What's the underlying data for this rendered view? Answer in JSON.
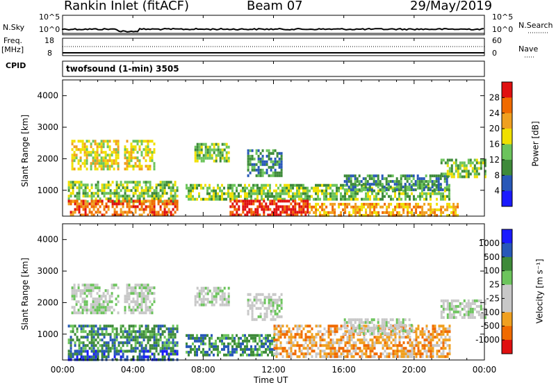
{
  "header": {
    "station": "Rankin Inlet (fitACF)",
    "beam": "Beam 07",
    "date": "29/May/2019"
  },
  "panels": {
    "nsky": {
      "left_label": "N.Sky",
      "left_ticks": [
        "10^5",
        "10^0"
      ],
      "right_label": "N.Search",
      "right_ticks": [
        "10^5",
        "10^0"
      ]
    },
    "freq": {
      "left_label_1": "Freq.",
      "left_label_2": "[MHz]",
      "left_ticks": [
        "18",
        "8"
      ],
      "right_label": "Nave",
      "right_ticks": [
        "60",
        "0"
      ]
    },
    "cpid": {
      "left_label": "CPID",
      "text": "twofsound (1-min) 3505"
    }
  },
  "colors": {
    "power": [
      "#1a1aff",
      "#2858b8",
      "#3e8a3a",
      "#6cc45c",
      "#f0e000",
      "#f0a020",
      "#f06a00",
      "#e01010"
    ],
    "velocity": [
      "#e01010",
      "#f06a00",
      "#f0a020",
      "#c8c8c8",
      "#c8c8c8",
      "#6cc45c",
      "#3e8a3a",
      "#2858b8",
      "#1a1aff"
    ]
  },
  "chart_data": [
    {
      "type": "heatmap",
      "name": "power",
      "ylabel": "Slant Range [km]",
      "ylim": [
        180,
        4500
      ],
      "yticks": [
        "1000",
        "2000",
        "3000",
        "4000"
      ],
      "xlim_hours": [
        0,
        24
      ],
      "colorbar_label": "Power [dB]",
      "colorbar_ticks": [
        "4",
        "8",
        "12",
        "16",
        "20",
        "24",
        "28"
      ],
      "regions": [
        {
          "t0": 0.5,
          "t1": 3.2,
          "r0": 1700,
          "r1": 2600,
          "level": 4
        },
        {
          "t0": 3.5,
          "t1": 5.2,
          "r0": 1700,
          "r1": 2600,
          "level": 4
        },
        {
          "t0": 7.5,
          "t1": 9.5,
          "r0": 1900,
          "r1": 2500,
          "level": 3
        },
        {
          "t0": 10.5,
          "t1": 12.5,
          "r0": 1500,
          "r1": 2300,
          "level": 2
        },
        {
          "t0": 0.3,
          "t1": 6.5,
          "r0": 600,
          "r1": 1300,
          "level": 3
        },
        {
          "t0": 7.0,
          "t1": 22.0,
          "r0": 700,
          "r1": 1200,
          "level": 3
        },
        {
          "t0": 16.0,
          "t1": 22.0,
          "r0": 1000,
          "r1": 1500,
          "level": 2
        },
        {
          "t0": 21.5,
          "t1": 24.0,
          "r0": 1400,
          "r1": 2000,
          "level": 3
        },
        {
          "t0": 0.3,
          "t1": 6.5,
          "r0": 200,
          "r1": 700,
          "level": 6
        },
        {
          "t0": 9.5,
          "t1": 14.0,
          "r0": 200,
          "r1": 700,
          "level": 7
        },
        {
          "t0": 14.0,
          "t1": 22.5,
          "r0": 200,
          "r1": 600,
          "level": 5
        }
      ]
    },
    {
      "type": "heatmap",
      "name": "velocity",
      "ylabel": "Slant Range [km]",
      "ylim": [
        180,
        4500
      ],
      "yticks": [
        "1000",
        "2000",
        "3000",
        "4000"
      ],
      "xlim_hours": [
        0,
        24
      ],
      "xticks": [
        "00:00",
        "04:00",
        "08:00",
        "12:00",
        "16:00",
        "20:00",
        "00:00"
      ],
      "xlabel": "Time UT",
      "colorbar_label": "Velocity [m s⁻¹]",
      "colorbar_ticks": [
        "1000",
        "500",
        "100",
        "25",
        "-25",
        "-100",
        "-500",
        "-1000"
      ],
      "regions": [
        {
          "t0": 0.5,
          "t1": 3.2,
          "r0": 1700,
          "r1": 2600,
          "level": 4
        },
        {
          "t0": 3.5,
          "t1": 5.2,
          "r0": 1700,
          "r1": 2600,
          "level": 4
        },
        {
          "t0": 7.5,
          "t1": 9.5,
          "r0": 1900,
          "r1": 2500,
          "level": 4
        },
        {
          "t0": 10.5,
          "t1": 12.5,
          "r0": 1500,
          "r1": 2300,
          "level": 4
        },
        {
          "t0": 0.3,
          "t1": 6.5,
          "r0": 500,
          "r1": 1300,
          "level": 6
        },
        {
          "t0": 7.0,
          "t1": 12.0,
          "r0": 300,
          "r1": 1000,
          "level": 6
        },
        {
          "t0": 12.0,
          "t1": 22.0,
          "r0": 300,
          "r1": 1300,
          "level": 2
        },
        {
          "t0": 16.0,
          "t1": 20.0,
          "r0": 1000,
          "r1": 1500,
          "level": 4
        },
        {
          "t0": 21.5,
          "t1": 24.0,
          "r0": 1500,
          "r1": 2100,
          "level": 4
        },
        {
          "t0": 0.3,
          "t1": 6.5,
          "r0": 200,
          "r1": 500,
          "level": 7
        }
      ]
    }
  ]
}
